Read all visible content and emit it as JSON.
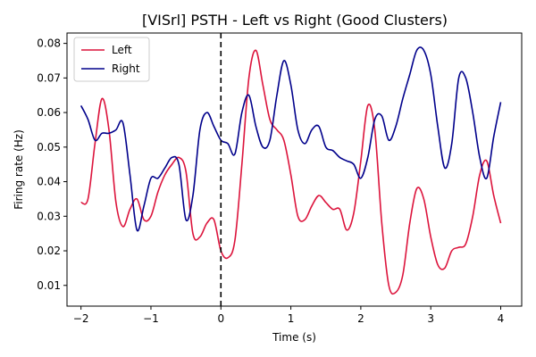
{
  "chart_data": {
    "type": "line",
    "title": "[VISrl] PSTH - Left vs Right (Good Clusters)",
    "xlabel": "Time (s)",
    "ylabel": "Firing rate (Hz)",
    "xlim": [
      -2.2,
      4.3
    ],
    "ylim": [
      0.004,
      0.083
    ],
    "x_ticks": [
      -2,
      -1,
      0,
      1,
      2,
      3,
      4
    ],
    "y_ticks": [
      0.01,
      0.02,
      0.03,
      0.04,
      0.05,
      0.06,
      0.07,
      0.08
    ],
    "x_tick_labels": [
      "−2",
      "−1",
      "0",
      "1",
      "2",
      "3",
      "4"
    ],
    "y_tick_labels": [
      "0.01",
      "0.02",
      "0.03",
      "0.04",
      "0.05",
      "0.06",
      "0.07",
      "0.08"
    ],
    "grid": false,
    "legend_position": "upper-left",
    "vline": {
      "x": 0,
      "style": "dashed",
      "color": "#000000"
    },
    "series": [
      {
        "name": "Left",
        "color": "#dc143c",
        "points": [
          [
            -2.0,
            0.034
          ],
          [
            -1.9,
            0.035
          ],
          [
            -1.8,
            0.051
          ],
          [
            -1.7,
            0.064
          ],
          [
            -1.6,
            0.055
          ],
          [
            -1.5,
            0.034
          ],
          [
            -1.4,
            0.027
          ],
          [
            -1.3,
            0.032
          ],
          [
            -1.2,
            0.035
          ],
          [
            -1.1,
            0.029
          ],
          [
            -1.0,
            0.03
          ],
          [
            -0.9,
            0.037
          ],
          [
            -0.8,
            0.042
          ],
          [
            -0.7,
            0.045
          ],
          [
            -0.6,
            0.047
          ],
          [
            -0.5,
            0.043
          ],
          [
            -0.4,
            0.025
          ],
          [
            -0.3,
            0.024
          ],
          [
            -0.2,
            0.028
          ],
          [
            -0.1,
            0.029
          ],
          [
            0.0,
            0.02
          ],
          [
            0.1,
            0.018
          ],
          [
            0.2,
            0.023
          ],
          [
            0.3,
            0.045
          ],
          [
            0.4,
            0.07
          ],
          [
            0.5,
            0.078
          ],
          [
            0.6,
            0.068
          ],
          [
            0.7,
            0.058
          ],
          [
            0.8,
            0.055
          ],
          [
            0.9,
            0.052
          ],
          [
            1.0,
            0.042
          ],
          [
            1.1,
            0.03
          ],
          [
            1.2,
            0.029
          ],
          [
            1.3,
            0.033
          ],
          [
            1.4,
            0.036
          ],
          [
            1.5,
            0.034
          ],
          [
            1.6,
            0.032
          ],
          [
            1.7,
            0.032
          ],
          [
            1.8,
            0.026
          ],
          [
            1.9,
            0.031
          ],
          [
            2.0,
            0.046
          ],
          [
            2.1,
            0.062
          ],
          [
            2.2,
            0.055
          ],
          [
            2.3,
            0.028
          ],
          [
            2.4,
            0.01
          ],
          [
            2.5,
            0.008
          ],
          [
            2.6,
            0.013
          ],
          [
            2.7,
            0.028
          ],
          [
            2.8,
            0.038
          ],
          [
            2.9,
            0.035
          ],
          [
            3.0,
            0.024
          ],
          [
            3.1,
            0.016
          ],
          [
            3.2,
            0.015
          ],
          [
            3.3,
            0.02
          ],
          [
            3.4,
            0.021
          ],
          [
            3.5,
            0.022
          ],
          [
            3.6,
            0.03
          ],
          [
            3.7,
            0.042
          ],
          [
            3.8,
            0.046
          ],
          [
            3.9,
            0.036
          ],
          [
            4.0,
            0.028
          ]
        ]
      },
      {
        "name": "Right",
        "color": "#00008b",
        "points": [
          [
            -2.0,
            0.062
          ],
          [
            -1.9,
            0.058
          ],
          [
            -1.8,
            0.052
          ],
          [
            -1.7,
            0.054
          ],
          [
            -1.6,
            0.054
          ],
          [
            -1.5,
            0.055
          ],
          [
            -1.4,
            0.057
          ],
          [
            -1.3,
            0.042
          ],
          [
            -1.2,
            0.026
          ],
          [
            -1.1,
            0.033
          ],
          [
            -1.0,
            0.041
          ],
          [
            -0.9,
            0.041
          ],
          [
            -0.8,
            0.044
          ],
          [
            -0.7,
            0.047
          ],
          [
            -0.6,
            0.045
          ],
          [
            -0.5,
            0.029
          ],
          [
            -0.4,
            0.036
          ],
          [
            -0.3,
            0.055
          ],
          [
            -0.2,
            0.06
          ],
          [
            -0.1,
            0.056
          ],
          [
            0.0,
            0.052
          ],
          [
            0.1,
            0.051
          ],
          [
            0.2,
            0.048
          ],
          [
            0.3,
            0.06
          ],
          [
            0.4,
            0.065
          ],
          [
            0.5,
            0.056
          ],
          [
            0.6,
            0.05
          ],
          [
            0.7,
            0.052
          ],
          [
            0.8,
            0.065
          ],
          [
            0.9,
            0.075
          ],
          [
            1.0,
            0.068
          ],
          [
            1.1,
            0.055
          ],
          [
            1.2,
            0.051
          ],
          [
            1.3,
            0.055
          ],
          [
            1.4,
            0.056
          ],
          [
            1.5,
            0.05
          ],
          [
            1.6,
            0.049
          ],
          [
            1.7,
            0.047
          ],
          [
            1.8,
            0.046
          ],
          [
            1.9,
            0.045
          ],
          [
            2.0,
            0.041
          ],
          [
            2.1,
            0.047
          ],
          [
            2.2,
            0.058
          ],
          [
            2.3,
            0.059
          ],
          [
            2.4,
            0.052
          ],
          [
            2.5,
            0.056
          ],
          [
            2.6,
            0.064
          ],
          [
            2.7,
            0.071
          ],
          [
            2.8,
            0.078
          ],
          [
            2.9,
            0.078
          ],
          [
            3.0,
            0.071
          ],
          [
            3.1,
            0.056
          ],
          [
            3.2,
            0.044
          ],
          [
            3.3,
            0.051
          ],
          [
            3.4,
            0.07
          ],
          [
            3.5,
            0.07
          ],
          [
            3.6,
            0.06
          ],
          [
            3.7,
            0.047
          ],
          [
            3.8,
            0.041
          ],
          [
            3.9,
            0.053
          ],
          [
            4.0,
            0.063
          ]
        ]
      }
    ]
  }
}
